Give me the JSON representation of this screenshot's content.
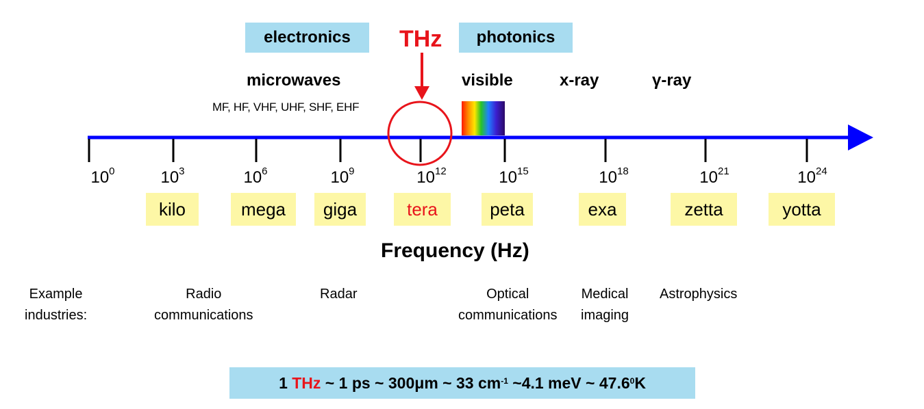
{
  "header": {
    "electronics": "electronics",
    "thz": "THz",
    "photonics": "photonics"
  },
  "bands": {
    "microwaves": "microwaves",
    "microwave_sub": "MF, HF, VHF, UHF, SHF, EHF",
    "visible": "visible",
    "xray": "x-ray",
    "gamma": "γ-ray"
  },
  "axis": {
    "title": "Frequency (Hz)",
    "ticks": [
      {
        "base": "10",
        "exp": "0",
        "prefix": ""
      },
      {
        "base": "10",
        "exp": "3",
        "prefix": "kilo"
      },
      {
        "base": "10",
        "exp": "6",
        "prefix": "mega"
      },
      {
        "base": "10",
        "exp": "9",
        "prefix": "giga"
      },
      {
        "base": "10",
        "exp": "12",
        "prefix": "tera"
      },
      {
        "base": "10",
        "exp": "15",
        "prefix": "peta"
      },
      {
        "base": "10",
        "exp": "18",
        "prefix": "exa"
      },
      {
        "base": "10",
        "exp": "21",
        "prefix": "zetta"
      },
      {
        "base": "10",
        "exp": "24",
        "prefix": "yotta"
      }
    ]
  },
  "industries": {
    "label_line1": "Example",
    "label_line2": "industries:",
    "radio_line1": "Radio",
    "radio_line2": "communications",
    "radar": "Radar",
    "optical_line1": "Optical",
    "optical_line2": "communications",
    "medical_line1": "Medical",
    "medical_line2": "imaging",
    "astro": "Astrophysics"
  },
  "formula": {
    "p1": "1 ",
    "thz": "THz",
    "p2": " ~ 1 ps ~ 300μm ~ 33 cm",
    "sup1": "-1",
    "p3": " ~4.1 meV ~ 47.6",
    "sup2": "0",
    "p4": "K"
  },
  "colors": {
    "axis": "#0000ff",
    "highlight": "#e8141b",
    "header_box": "#a8dcf0",
    "prefix_box": "#fdf7a6"
  }
}
